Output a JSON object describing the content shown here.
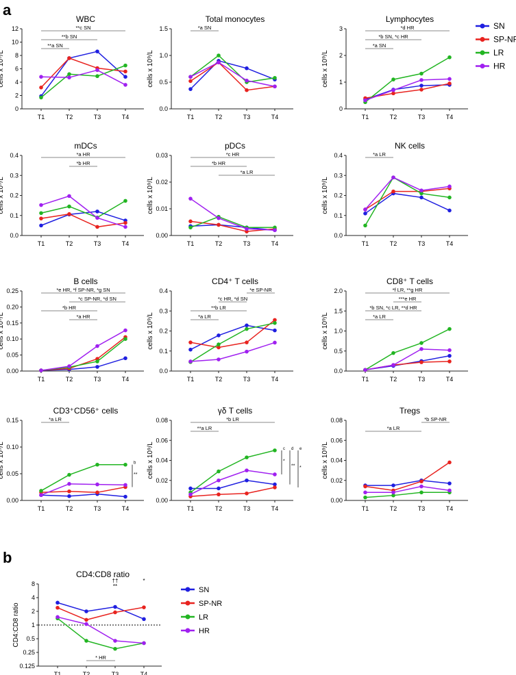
{
  "panel_labels": [
    "a",
    "b"
  ],
  "colors": {
    "SN": "#1f1fe0",
    "SP-NR": "#e8231f",
    "LR": "#22b522",
    "HR": "#a020f0",
    "axis": "#222222",
    "sig_line": "#888888"
  },
  "legend": [
    "SN",
    "SP-NR",
    "LR",
    "HR"
  ],
  "chart_data": [
    {
      "type": "line",
      "title": "WBC",
      "ylabel": "cells x 10⁹/L",
      "categories": [
        "T1",
        "T2",
        "T3",
        "T4"
      ],
      "ylim": [
        0,
        12
      ],
      "yticks": [
        0,
        2,
        4,
        6,
        8,
        10,
        12
      ],
      "ytick_labels": [
        "0",
        "2",
        "4",
        "6",
        "8",
        "10",
        "12"
      ],
      "series": [
        {
          "name": "SN",
          "values": [
            1.9,
            7.6,
            8.6,
            4.8
          ]
        },
        {
          "name": "SP-NR",
          "values": [
            3.2,
            7.6,
            6.1,
            5.6
          ]
        },
        {
          "name": "LR",
          "values": [
            1.7,
            5.2,
            4.9,
            6.5
          ]
        },
        {
          "name": "HR",
          "values": [
            4.8,
            4.7,
            5.8,
            3.6
          ]
        }
      ],
      "significance": [
        {
          "from": "T1",
          "to": "T2",
          "label": "**a SN"
        },
        {
          "from": "T1",
          "to": "T3",
          "label": "**b SN"
        },
        {
          "from": "T1",
          "to": "T4",
          "label": "**c SN"
        }
      ]
    },
    {
      "type": "line",
      "title": "Total monocytes",
      "ylabel": "cells x 10⁹/L",
      "categories": [
        "T1",
        "T2",
        "T3",
        "T4"
      ],
      "ylim": [
        0,
        1.5
      ],
      "yticks": [
        0,
        0.5,
        1,
        1.5
      ],
      "ytick_labels": [
        "0.0",
        "0.5",
        "1.0",
        "1.5"
      ],
      "series": [
        {
          "name": "SN",
          "values": [
            0.37,
            0.9,
            0.76,
            0.55
          ]
        },
        {
          "name": "SP-NR",
          "values": [
            0.52,
            0.87,
            0.35,
            0.42
          ]
        },
        {
          "name": "LR",
          "values": [
            0.6,
            1.0,
            0.5,
            0.58
          ]
        },
        {
          "name": "HR",
          "values": [
            0.6,
            0.87,
            0.53,
            0.42
          ]
        }
      ],
      "significance": [
        {
          "from": "T1",
          "to": "T2",
          "label": "*a SN"
        }
      ]
    },
    {
      "type": "line",
      "title": "Lymphocytes",
      "ylabel": "cells x 10⁹/L",
      "categories": [
        "T1",
        "T2",
        "T3",
        "T4"
      ],
      "ylim": [
        0,
        3
      ],
      "yticks": [
        0,
        1,
        2,
        3
      ],
      "ytick_labels": [
        "0",
        "1",
        "2",
        "3"
      ],
      "series": [
        {
          "name": "SN",
          "values": [
            0.35,
            0.72,
            0.87,
            0.9
          ]
        },
        {
          "name": "SP-NR",
          "values": [
            0.4,
            0.58,
            0.72,
            0.95
          ]
        },
        {
          "name": "LR",
          "values": [
            0.25,
            1.1,
            1.32,
            1.93
          ]
        },
        {
          "name": "HR",
          "values": [
            0.32,
            0.7,
            1.08,
            1.12
          ]
        }
      ],
      "significance": [
        {
          "from": "T1",
          "to": "T2",
          "label": "*a SN"
        },
        {
          "from": "T1",
          "to": "T3",
          "label": "*b SN, *c HR"
        },
        {
          "from": "T1",
          "to": "T4",
          "label": "*d HR"
        }
      ]
    },
    {
      "type": "line",
      "title": "mDCs",
      "ylabel": "cells x 10⁹/L",
      "categories": [
        "T1",
        "T2",
        "T3",
        "T4"
      ],
      "ylim": [
        0,
        0.4
      ],
      "yticks": [
        0,
        0.1,
        0.2,
        0.3,
        0.4
      ],
      "ytick_labels": [
        "0.0",
        "0.1",
        "0.2",
        "0.3",
        "0.4"
      ],
      "series": [
        {
          "name": "SN",
          "values": [
            0.05,
            0.105,
            0.12,
            0.075
          ]
        },
        {
          "name": "SP-NR",
          "values": [
            0.085,
            0.107,
            0.043,
            0.063
          ]
        },
        {
          "name": "LR",
          "values": [
            0.112,
            0.145,
            0.09,
            0.173
          ]
        },
        {
          "name": "HR",
          "values": [
            0.152,
            0.197,
            0.088,
            0.043
          ]
        }
      ],
      "significance": [
        {
          "from": "T2",
          "to": "T3",
          "label": "*b HR"
        },
        {
          "from": "T1",
          "to": "T4",
          "label": "*a HR"
        }
      ]
    },
    {
      "type": "line",
      "title": "pDCs",
      "ylabel": "cells x 10⁹/L",
      "categories": [
        "T1",
        "T2",
        "T3",
        "T4"
      ],
      "ylim": [
        0,
        0.03
      ],
      "yticks": [
        0,
        0.01,
        0.02,
        0.03
      ],
      "ytick_labels": [
        "0.00",
        "0.01",
        "0.02",
        "0.03"
      ],
      "series": [
        {
          "name": "SN",
          "values": [
            0.0035,
            0.004,
            0.003,
            0.002
          ]
        },
        {
          "name": "SP-NR",
          "values": [
            0.0053,
            0.004,
            0.0015,
            0.0025
          ]
        },
        {
          "name": "LR",
          "values": [
            0.003,
            0.007,
            0.003,
            0.003
          ]
        },
        {
          "name": "HR",
          "values": [
            0.0138,
            0.0065,
            0.0025,
            0.002
          ]
        }
      ],
      "significance": [
        {
          "from": "T2",
          "to": "T4",
          "label": "*a LR"
        },
        {
          "from": "T1",
          "to": "T3",
          "label": "*b HR"
        },
        {
          "from": "T1",
          "to": "T4",
          "label": "*c HR"
        }
      ]
    },
    {
      "type": "line",
      "title": "NK cells",
      "ylabel": "cells x 10⁹/L",
      "categories": [
        "T1",
        "T2",
        "T3",
        "T4"
      ],
      "ylim": [
        0,
        0.4
      ],
      "yticks": [
        0,
        0.1,
        0.2,
        0.3,
        0.4
      ],
      "ytick_labels": [
        "0.0",
        "0.1",
        "0.2",
        "0.3",
        "0.4"
      ],
      "series": [
        {
          "name": "SN",
          "values": [
            0.11,
            0.21,
            0.19,
            0.125
          ]
        },
        {
          "name": "SP-NR",
          "values": [
            0.13,
            0.22,
            0.22,
            0.235
          ]
        },
        {
          "name": "LR",
          "values": [
            0.05,
            0.29,
            0.21,
            0.19
          ]
        },
        {
          "name": "HR",
          "values": [
            0.13,
            0.29,
            0.225,
            0.245
          ]
        }
      ],
      "significance": [
        {
          "from": "T1",
          "to": "T2",
          "label": "*a LR"
        }
      ]
    },
    {
      "type": "line",
      "title": "B cells",
      "ylabel": "cells x 10⁹/L",
      "categories": [
        "T1",
        "T2",
        "T3",
        "T4"
      ],
      "ylim": [
        0,
        0.25
      ],
      "yticks": [
        0,
        0.05,
        0.1,
        0.15,
        0.2,
        0.25
      ],
      "ytick_labels": [
        "0.00",
        "0.05",
        "0.10",
        "0.15",
        "0.20",
        "0.25"
      ],
      "series": [
        {
          "name": "SN",
          "values": [
            0.002,
            0.005,
            0.013,
            0.04
          ]
        },
        {
          "name": "SP-NR",
          "values": [
            0.002,
            0.008,
            0.038,
            0.106
          ]
        },
        {
          "name": "LR",
          "values": [
            0.002,
            0.012,
            0.03,
            0.1
          ]
        },
        {
          "name": "HR",
          "values": [
            0.002,
            0.015,
            0.078,
            0.127
          ]
        }
      ],
      "significance": [
        {
          "from": "T2",
          "to": "T3",
          "label": "*a HR"
        },
        {
          "from": "T1",
          "to": "T3",
          "label": "*b HR"
        },
        {
          "from": "T2",
          "to": "T4",
          "label": "*c SP-NR, *d SN"
        },
        {
          "from": "T1",
          "to": "T4",
          "label": "*e HR, *f SP-NR, *g SN"
        }
      ]
    },
    {
      "type": "line",
      "title": "CD4⁺ T cells",
      "ylabel": "cells x 10⁹/L",
      "categories": [
        "T1",
        "T2",
        "T3",
        "T4"
      ],
      "ylim": [
        0,
        0.4
      ],
      "yticks": [
        0,
        0.1,
        0.2,
        0.3,
        0.4
      ],
      "ytick_labels": [
        "0.0",
        "0.1",
        "0.2",
        "0.3",
        "0.4"
      ],
      "series": [
        {
          "name": "SN",
          "values": [
            0.107,
            0.178,
            0.228,
            0.203
          ]
        },
        {
          "name": "SP-NR",
          "values": [
            0.143,
            0.118,
            0.143,
            0.255
          ]
        },
        {
          "name": "LR",
          "values": [
            0.045,
            0.133,
            0.21,
            0.24
          ]
        },
        {
          "name": "HR",
          "values": [
            0.048,
            0.058,
            0.097,
            0.142
          ]
        }
      ],
      "significance": [
        {
          "from": "T1",
          "to": "T2",
          "label": "*a LR"
        },
        {
          "from": "T1",
          "to": "T3",
          "label": "**b LR"
        },
        {
          "from": "T2",
          "to": "T3",
          "label": "*c HR, *d SN"
        },
        {
          "from": "T3",
          "to": "T4",
          "label": "*e SP-NR"
        }
      ]
    },
    {
      "type": "line",
      "title": "CD8⁺ T cells",
      "ylabel": "cells x 10⁹/L",
      "categories": [
        "T1",
        "T2",
        "T3",
        "T4"
      ],
      "ylim": [
        0,
        2
      ],
      "yticks": [
        0,
        0.5,
        1,
        1.5,
        2
      ],
      "ytick_labels": [
        "0.0",
        "0.5",
        "1.0",
        "1.5",
        "2.0"
      ],
      "series": [
        {
          "name": "SN",
          "values": [
            0.03,
            0.13,
            0.25,
            0.38
          ]
        },
        {
          "name": "SP-NR",
          "values": [
            0.03,
            0.15,
            0.22,
            0.24
          ]
        },
        {
          "name": "LR",
          "values": [
            0.03,
            0.45,
            0.7,
            1.05
          ]
        },
        {
          "name": "HR",
          "values": [
            0.03,
            0.15,
            0.55,
            0.52
          ]
        }
      ],
      "significance": [
        {
          "from": "T1",
          "to": "T2",
          "label": "*a LR"
        },
        {
          "from": "T1",
          "to": "T3",
          "label": "*b SN, *c LR, **d HR"
        },
        {
          "from": "T2",
          "to": "T3",
          "label": "***e HR"
        },
        {
          "from": "T1",
          "to": "T4",
          "label": "*f LR, **g HR"
        }
      ]
    },
    {
      "type": "line",
      "title": "CD3⁺CD56⁺ cells",
      "ylabel": "cells x 10⁹/L",
      "categories": [
        "T1",
        "T2",
        "T3",
        "T4"
      ],
      "ylim": [
        0,
        0.15
      ],
      "yticks": [
        0,
        0.05,
        0.1,
        0.15
      ],
      "ytick_labels": [
        "0.00",
        "0.05",
        "0.10",
        "0.15"
      ],
      "series": [
        {
          "name": "SN",
          "values": [
            0.01,
            0.008,
            0.012,
            0.007
          ]
        },
        {
          "name": "SP-NR",
          "values": [
            0.015,
            0.017,
            0.015,
            0.025
          ]
        },
        {
          "name": "LR",
          "values": [
            0.018,
            0.048,
            0.067,
            0.067
          ]
        },
        {
          "name": "HR",
          "values": [
            0.01,
            0.031,
            0.03,
            0.029
          ]
        }
      ],
      "significance": [
        {
          "from": "T1",
          "to": "T2",
          "label": "*a LR"
        }
      ],
      "side_marks": [
        {
          "label": "b",
          "stars": "**"
        }
      ]
    },
    {
      "type": "line",
      "title": "γδ T cells",
      "ylabel": "cells x 10⁹/L",
      "categories": [
        "T1",
        "T2",
        "T3",
        "T4"
      ],
      "ylim": [
        0,
        0.08
      ],
      "yticks": [
        0,
        0.02,
        0.04,
        0.06,
        0.08
      ],
      "ytick_labels": [
        "0.00",
        "0.02",
        "0.04",
        "0.06",
        "0.08"
      ],
      "series": [
        {
          "name": "SN",
          "values": [
            0.012,
            0.012,
            0.02,
            0.016
          ]
        },
        {
          "name": "SP-NR",
          "values": [
            0.004,
            0.006,
            0.007,
            0.013
          ]
        },
        {
          "name": "LR",
          "values": [
            0.008,
            0.029,
            0.043,
            0.05
          ]
        },
        {
          "name": "HR",
          "values": [
            0.006,
            0.02,
            0.03,
            0.026
          ]
        }
      ],
      "significance": [
        {
          "from": "T1",
          "to": "T2",
          "label": "**a LR"
        },
        {
          "from": "T1",
          "to": "T4",
          "label": "*b LR"
        }
      ],
      "side_marks": [
        {
          "label": "c",
          "stars": "*"
        },
        {
          "label": "d",
          "stars": "**"
        },
        {
          "label": "e",
          "stars": "*"
        }
      ]
    },
    {
      "type": "line",
      "title": "Tregs",
      "ylabel": "cells x 10⁹/L",
      "categories": [
        "T1",
        "T2",
        "T3",
        "T4"
      ],
      "ylim": [
        0,
        0.08
      ],
      "yticks": [
        0,
        0.02,
        0.04,
        0.06,
        0.08
      ],
      "ytick_labels": [
        "0.00",
        "0.02",
        "0.04",
        "0.06",
        "0.08"
      ],
      "series": [
        {
          "name": "SN",
          "values": [
            0.015,
            0.015,
            0.02,
            0.017
          ]
        },
        {
          "name": "SP-NR",
          "values": [
            0.014,
            0.01,
            0.019,
            0.038
          ]
        },
        {
          "name": "LR",
          "values": [
            0.003,
            0.005,
            0.008,
            0.008
          ]
        },
        {
          "name": "HR",
          "values": [
            0.008,
            0.008,
            0.014,
            0.01
          ]
        }
      ],
      "significance": [
        {
          "from": "T1",
          "to": "T3",
          "label": "*a LR"
        },
        {
          "from": "T3",
          "to": "T4",
          "label": "*b SP-NR"
        }
      ]
    },
    {
      "type": "line",
      "title": "CD4:CD8 ratio",
      "ylabel": "CD4:CD8 ratio",
      "categories": [
        "T1",
        "T2",
        "T3",
        "T4"
      ],
      "yscale": "log2",
      "ylim": [
        0.125,
        8
      ],
      "yticks": [
        0.125,
        0.25,
        0.5,
        1,
        2,
        4,
        8
      ],
      "ytick_labels": [
        "0.125",
        "0.25",
        "0.5",
        "1",
        "2",
        "4",
        "8"
      ],
      "reference_line": 1,
      "series": [
        {
          "name": "SN",
          "values": [
            3.1,
            2.0,
            2.5,
            1.35
          ]
        },
        {
          "name": "SP-NR",
          "values": [
            2.4,
            1.3,
            1.9,
            2.45
          ]
        },
        {
          "name": "LR",
          "values": [
            1.4,
            0.45,
            0.3,
            0.4
          ]
        },
        {
          "name": "HR",
          "values": [
            1.5,
            1.05,
            0.45,
            0.4
          ]
        }
      ],
      "significance": [
        {
          "from": "T2",
          "to": "T3",
          "label": "* HR",
          "position": "below"
        }
      ],
      "point_marks": [
        {
          "at": "T3",
          "label": "††"
        },
        {
          "at": "T3",
          "label": "**"
        },
        {
          "at": "T4",
          "label": "*"
        }
      ]
    }
  ]
}
